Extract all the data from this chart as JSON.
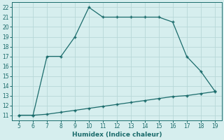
{
  "x_upper": [
    5,
    6,
    7,
    8,
    9,
    10,
    11,
    12,
    13,
    14,
    15,
    16,
    17,
    18,
    19
  ],
  "y_upper": [
    11,
    11,
    17,
    17,
    19,
    22,
    21,
    21,
    21,
    21,
    21,
    20.5,
    17,
    15.5,
    13.5
  ],
  "x_lower": [
    5,
    6,
    7,
    8,
    9,
    10,
    11,
    12,
    13,
    14,
    15,
    16,
    17,
    18,
    19
  ],
  "y_lower": [
    11,
    11,
    11.1,
    11.3,
    11.5,
    11.7,
    11.9,
    12.1,
    12.3,
    12.5,
    12.7,
    12.9,
    13.0,
    13.2,
    13.4
  ],
  "xlabel": "Humidex (Indice chaleur)",
  "xlim": [
    4.5,
    19.5
  ],
  "ylim": [
    10.5,
    22.5
  ],
  "xticks": [
    5,
    6,
    7,
    8,
    9,
    10,
    11,
    12,
    13,
    14,
    15,
    16,
    17,
    18,
    19
  ],
  "yticks": [
    11,
    12,
    13,
    14,
    15,
    16,
    17,
    18,
    19,
    20,
    21,
    22
  ],
  "line_color": "#1a6b6b",
  "bg_color": "#d6eeee",
  "grid_color": "#b8d8d8"
}
